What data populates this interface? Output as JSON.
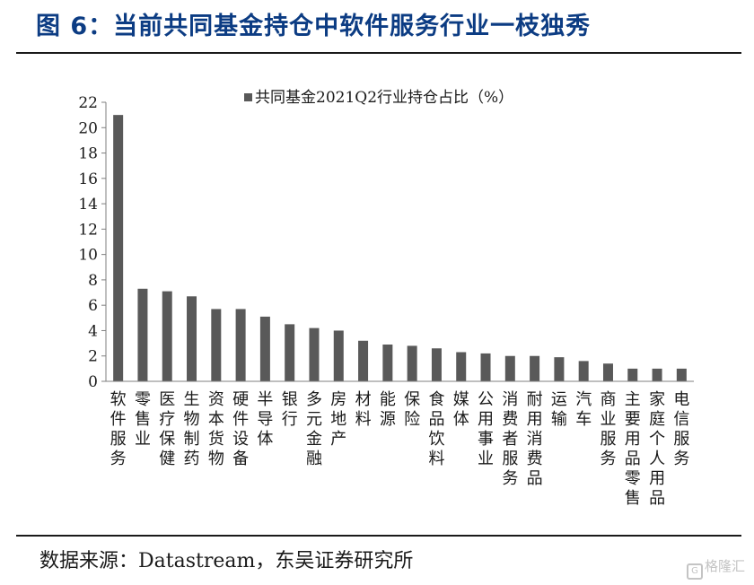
{
  "figure": {
    "title": "图 6：当前共同基金持仓中软件服务行业一枝独秀",
    "source": "数据来源：Datastream，东吴证券研究所",
    "watermark": "格隆汇",
    "watermark_icon": "G-logo-icon"
  },
  "colors": {
    "title": "#0c3c83",
    "bar": "#595959",
    "axis": "#7f7f7f",
    "text": "#1a1a1a"
  },
  "chart_data": {
    "type": "bar",
    "title": "",
    "xlabel": "",
    "ylabel": "",
    "ylim": [
      0,
      22
    ],
    "yticks": [
      0,
      2,
      4,
      6,
      8,
      10,
      12,
      14,
      16,
      18,
      20,
      22
    ],
    "grid": false,
    "legend_position": "top-center",
    "categories": [
      "软件服务",
      "零售业",
      "医疗保健",
      "生物制药",
      "资本货物",
      "硬件设备",
      "半导体",
      "银行",
      "多元金融",
      "房地产",
      "材料",
      "能源",
      "保险",
      "食品饮料",
      "媒体",
      "公用事业",
      "消费者服务",
      "耐用消费品",
      "运输",
      "汽车",
      "商业服务",
      "主要用品零售",
      "家庭个人用品",
      "电信服务"
    ],
    "series": [
      {
        "name": "共同基金2021Q2行业持仓占比（%）",
        "values": [
          21.0,
          7.3,
          7.1,
          6.7,
          5.7,
          5.7,
          5.1,
          4.5,
          4.2,
          4.0,
          3.2,
          2.9,
          2.8,
          2.6,
          2.3,
          2.2,
          2.0,
          2.0,
          1.9,
          1.6,
          1.4,
          1.0,
          1.0,
          1.0
        ]
      }
    ]
  }
}
